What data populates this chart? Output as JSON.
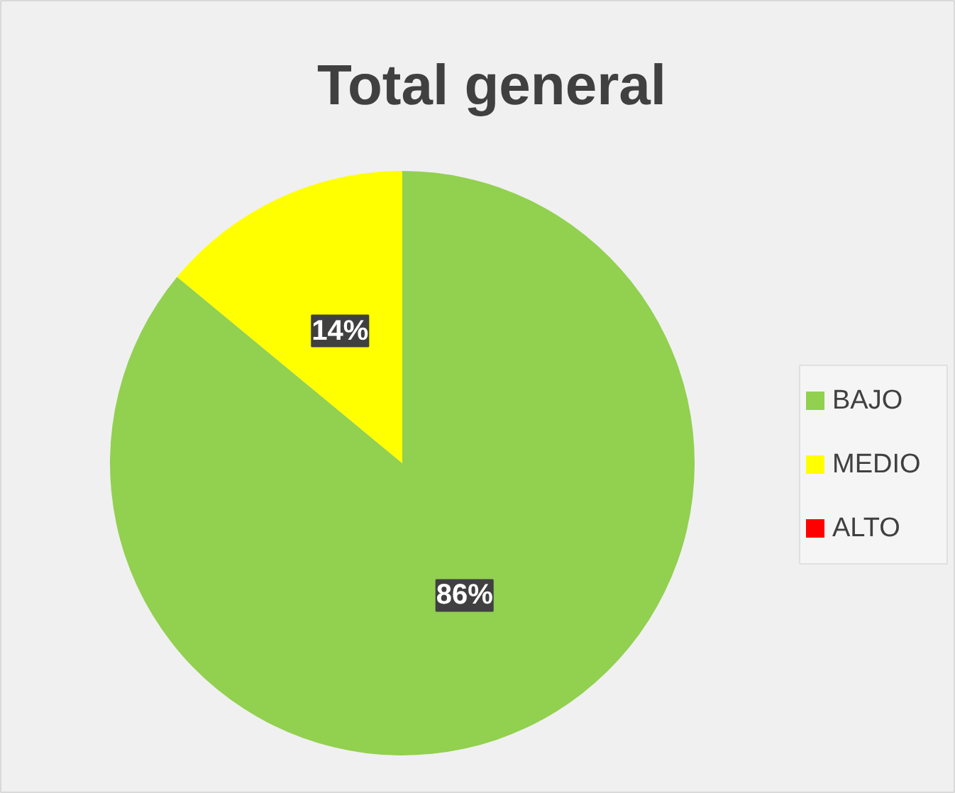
{
  "chart_data": {
    "type": "pie",
    "title": "Total general",
    "categories": [
      "BAJO",
      "MEDIO",
      "ALTO"
    ],
    "values": [
      86,
      14,
      0
    ],
    "colors": [
      "#92d050",
      "#ffff00",
      "#ff0000"
    ],
    "value_labels": [
      "86%",
      "14%",
      null
    ],
    "legend": "right"
  }
}
